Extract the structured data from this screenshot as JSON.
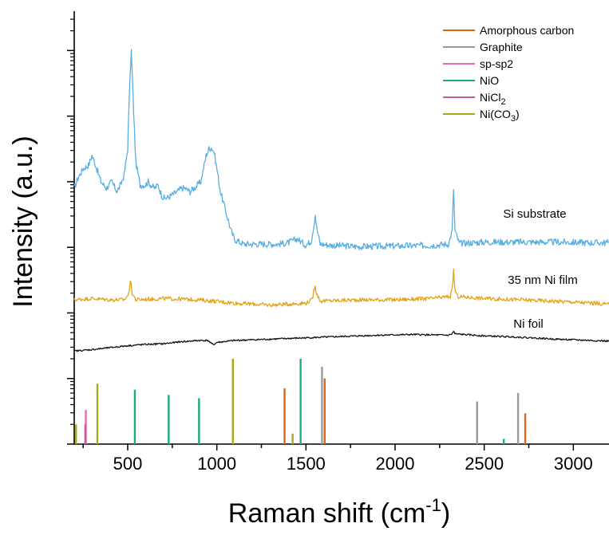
{
  "chart_data": {
    "type": "line",
    "xlabel": "Raman shift (cm",
    "xlabel_sup": "-1",
    "xlabel_tail": ")",
    "ylabel": "Intensity (a.u.)",
    "xlim": [
      200,
      3200
    ],
    "ylim": [
      0,
      6.6
    ],
    "x_ticks": [
      500,
      1000,
      1500,
      2000,
      2500,
      3000
    ],
    "y_scale": "log-style decades, unlabeled",
    "series": [
      {
        "name": "Si substrate",
        "color": "#5aafe0",
        "x": [
          200,
          220,
          250,
          280,
          300,
          320,
          350,
          380,
          410,
          440,
          460,
          480,
          500,
          510,
          520,
          530,
          545,
          570,
          600,
          615,
          630,
          650,
          670,
          690,
          700,
          720,
          750,
          780,
          800,
          820,
          850,
          880,
          910,
          940,
          955,
          970,
          985,
          1000,
          1020,
          1040,
          1060,
          1080,
          1100,
          1150,
          1200,
          1250,
          1300,
          1350,
          1400,
          1450,
          1500,
          1530,
          1545,
          1552,
          1560,
          1580,
          1650,
          1800,
          2000,
          2200,
          2300,
          2320,
          2328,
          2336,
          2360,
          2500,
          2700,
          2900,
          3100,
          3200
        ],
        "y": [
          3.9,
          4.05,
          4.2,
          4.25,
          4.4,
          4.25,
          4.0,
          3.9,
          4.0,
          3.85,
          3.95,
          4.1,
          4.5,
          5.4,
          6.0,
          5.3,
          4.3,
          3.95,
          3.95,
          4.0,
          3.95,
          3.9,
          3.95,
          3.8,
          3.75,
          3.75,
          3.8,
          3.85,
          3.9,
          3.9,
          3.85,
          3.92,
          4.0,
          4.4,
          4.5,
          4.52,
          4.45,
          4.2,
          3.85,
          3.65,
          3.45,
          3.25,
          3.12,
          3.05,
          3.05,
          3.05,
          3.05,
          3.05,
          3.07,
          3.13,
          3.03,
          3.1,
          3.35,
          3.5,
          3.3,
          3.05,
          3.03,
          3.01,
          3.02,
          3.03,
          3.05,
          3.25,
          3.9,
          3.25,
          3.06,
          3.08,
          3.08,
          3.08,
          3.07,
          3.07
        ]
      },
      {
        "name": "35 nm Ni film",
        "color": "#e3a31a",
        "x": [
          200,
          300,
          400,
          480,
          505,
          515,
          525,
          545,
          700,
          900,
          1100,
          1300,
          1500,
          1535,
          1545,
          1552,
          1560,
          1580,
          1800,
          2000,
          2200,
          2310,
          2320,
          2328,
          2336,
          2350,
          2500,
          2700,
          2900,
          3100,
          3200
        ],
        "y": [
          2.2,
          2.22,
          2.2,
          2.2,
          2.28,
          2.5,
          2.3,
          2.2,
          2.22,
          2.2,
          2.15,
          2.12,
          2.15,
          2.2,
          2.35,
          2.42,
          2.3,
          2.18,
          2.2,
          2.2,
          2.22,
          2.25,
          2.35,
          2.65,
          2.35,
          2.25,
          2.22,
          2.2,
          2.18,
          2.15,
          2.13
        ]
      },
      {
        "name": "Ni foil",
        "color": "#111111",
        "x": [
          200,
          300,
          400,
          500,
          600,
          700,
          800,
          900,
          950,
          970,
          985,
          1000,
          1100,
          1300,
          1500,
          1700,
          1900,
          2100,
          2300,
          2320,
          2328,
          2336,
          2500,
          2700,
          2900,
          3100,
          3200
        ],
        "y": [
          1.42,
          1.44,
          1.47,
          1.5,
          1.52,
          1.53,
          1.56,
          1.58,
          1.58,
          1.53,
          1.52,
          1.55,
          1.58,
          1.6,
          1.62,
          1.64,
          1.66,
          1.67,
          1.66,
          1.68,
          1.72,
          1.68,
          1.65,
          1.63,
          1.6,
          1.58,
          1.57
        ]
      }
    ],
    "trace_labels": [
      {
        "text": "Si substrate",
        "series": 0
      },
      {
        "text": "35 nm Ni film",
        "series": 1
      },
      {
        "text": "Ni foil",
        "series": 2
      }
    ],
    "reference_groups": [
      {
        "name": "Amorphous carbon",
        "color": "#d9661c",
        "lines": [
          {
            "x": 1380,
            "h": 0.85
          },
          {
            "x": 1605,
            "h": 1.0
          },
          {
            "x": 2730,
            "h": 0.47
          }
        ]
      },
      {
        "name": "Graphite",
        "color": "#9a9a9a",
        "lines": [
          {
            "x": 1590,
            "h": 1.18
          },
          {
            "x": 2460,
            "h": 0.65
          },
          {
            "x": 2690,
            "h": 0.78
          }
        ]
      },
      {
        "name": "sp-sp2",
        "color": "#de6fa8",
        "lines": [
          {
            "x": 265,
            "h": 0.52
          }
        ]
      },
      {
        "name": "NiO",
        "color": "#1aab7f",
        "lines": [
          {
            "x": 540,
            "h": 0.83
          },
          {
            "x": 730,
            "h": 0.75
          },
          {
            "x": 900,
            "h": 0.7
          },
          {
            "x": 1470,
            "h": 1.3
          },
          {
            "x": 2610,
            "h": 0.08
          }
        ]
      },
      {
        "name": "NiCl",
        "name_sub": "2",
        "color": "#c55aa0",
        "lines": [
          {
            "x": 262,
            "h": 0.3
          }
        ]
      },
      {
        "name": "Ni(CO",
        "name_sub": "3",
        "name_tail": ")",
        "color": "#a7a81d",
        "lines": [
          {
            "x": 210,
            "h": 0.3
          },
          {
            "x": 330,
            "h": 0.92
          },
          {
            "x": 1090,
            "h": 1.3
          },
          {
            "x": 1425,
            "h": 0.16
          }
        ]
      }
    ],
    "legend_position": "top-right",
    "grid": false
  }
}
